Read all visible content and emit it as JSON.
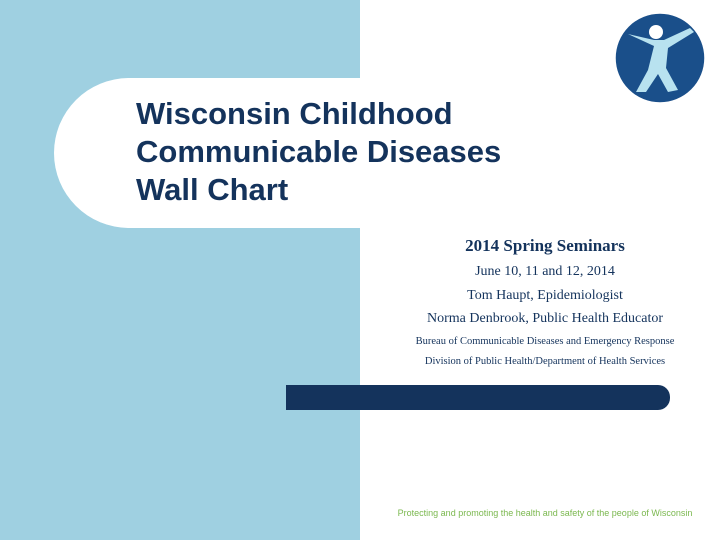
{
  "slide": {
    "title_lines": [
      "Wisconsin Childhood",
      "Communicable Diseases",
      "Wall Chart"
    ],
    "logo_icon": "wisconsin-dhs-figure-icon",
    "subtitle": {
      "event": "2014 Spring Seminars",
      "dates": "June 10, 11 and 12, 2014",
      "presenter1": "Tom Haupt, Epidemiologist",
      "presenter2": "Norma Denbrook, Public Health Educator",
      "bureau": "Bureau of Communicable Diseases and Emergency Response",
      "division": "Division of Public Health/Department of Health Services"
    },
    "tagline": "Protecting and promoting the health and safety of the people of Wisconsin"
  },
  "colors": {
    "navy": "#14335c",
    "light_blue": "#9fd0e1",
    "green": "#7bb84f",
    "logo_blue": "#1a4f8a",
    "logo_figure": "#b8e2ef"
  }
}
